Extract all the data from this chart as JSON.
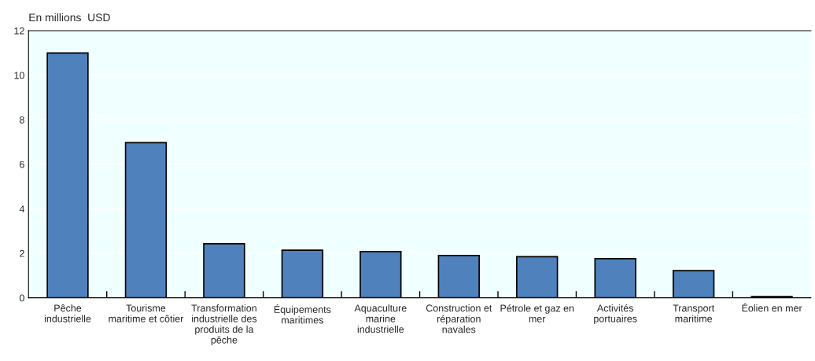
{
  "chart_data": {
    "type": "bar",
    "ylabel": "En millions  USD",
    "categories": [
      "Pêche\nindustrielle",
      "Tourisme\nmaritime et côtier",
      "Transformation\nindustrielle des\nproduits de la\npêche",
      "Équipements\nmaritimes",
      "Aquaculture\nmarine\nindustrielle",
      "Construction et\nréparation\nnavales",
      "Pétrole et gaz en\nmer",
      "Activités\nportuaires",
      "Transport\nmaritime",
      "Éolien en mer"
    ],
    "values": [
      11.0,
      6.97,
      2.43,
      2.14,
      2.08,
      1.9,
      1.85,
      1.76,
      1.22,
      0.06
    ],
    "color": "#4f81bd",
    "ylim": [
      0,
      12
    ],
    "yticks": [
      0,
      2,
      4,
      6,
      8,
      10,
      12
    ],
    "grid": "y"
  }
}
